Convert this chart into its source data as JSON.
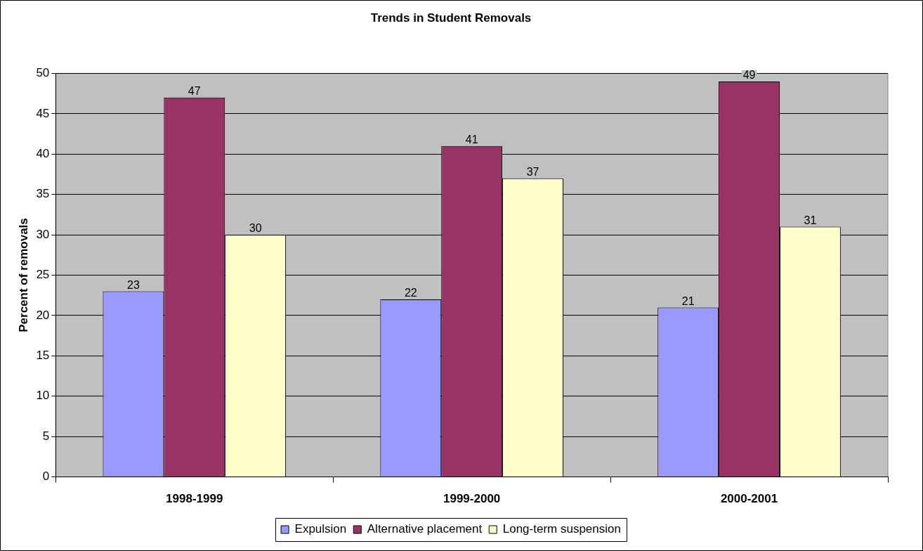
{
  "chart_data": {
    "type": "bar",
    "title": "Trends in Student Removals",
    "ylabel": "Percent of removals",
    "categories": [
      "1998-1999",
      "1999-2000",
      "2000-2001"
    ],
    "series": [
      {
        "name": "Expulsion",
        "color": "#9999ff",
        "values": [
          23,
          22,
          21
        ]
      },
      {
        "name": "Alternative placement",
        "color": "#993366",
        "values": [
          47,
          41,
          49
        ]
      },
      {
        "name": "Long-term suspension",
        "color": "#ffffcc",
        "values": [
          30,
          37,
          31
        ]
      }
    ],
    "ylim": [
      0,
      50
    ],
    "yticks": [
      0,
      5,
      10,
      15,
      20,
      25,
      30,
      35,
      40,
      45,
      50
    ],
    "grid": "y",
    "legend": "bottom",
    "data_labels": true
  }
}
